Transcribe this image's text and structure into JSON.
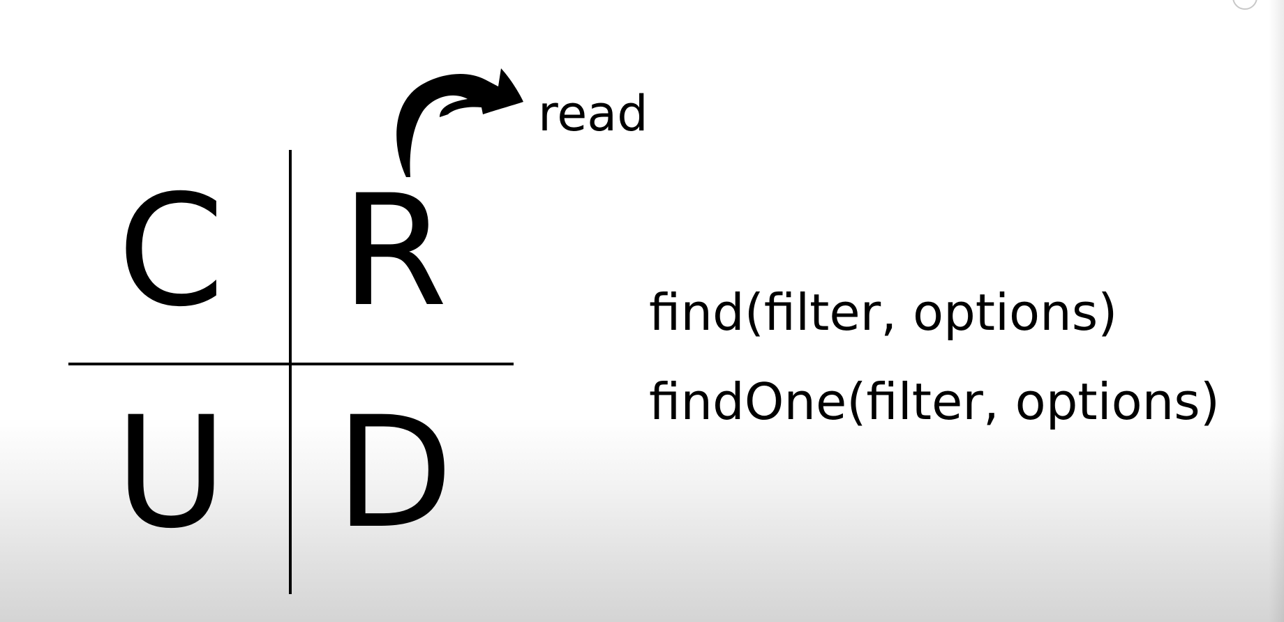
{
  "diagram": {
    "quadrants": {
      "top_left": "C",
      "top_right": "R",
      "bottom_left": "U",
      "bottom_right": "D"
    },
    "arrow_label": "read",
    "methods": [
      "find(filter, options)",
      "findOne(filter, options)"
    ]
  },
  "colors": {
    "ink": "#000000",
    "background": "#ffffff"
  },
  "icons": {
    "arrow": "curved-arrow-icon",
    "corner": "circle-icon"
  }
}
